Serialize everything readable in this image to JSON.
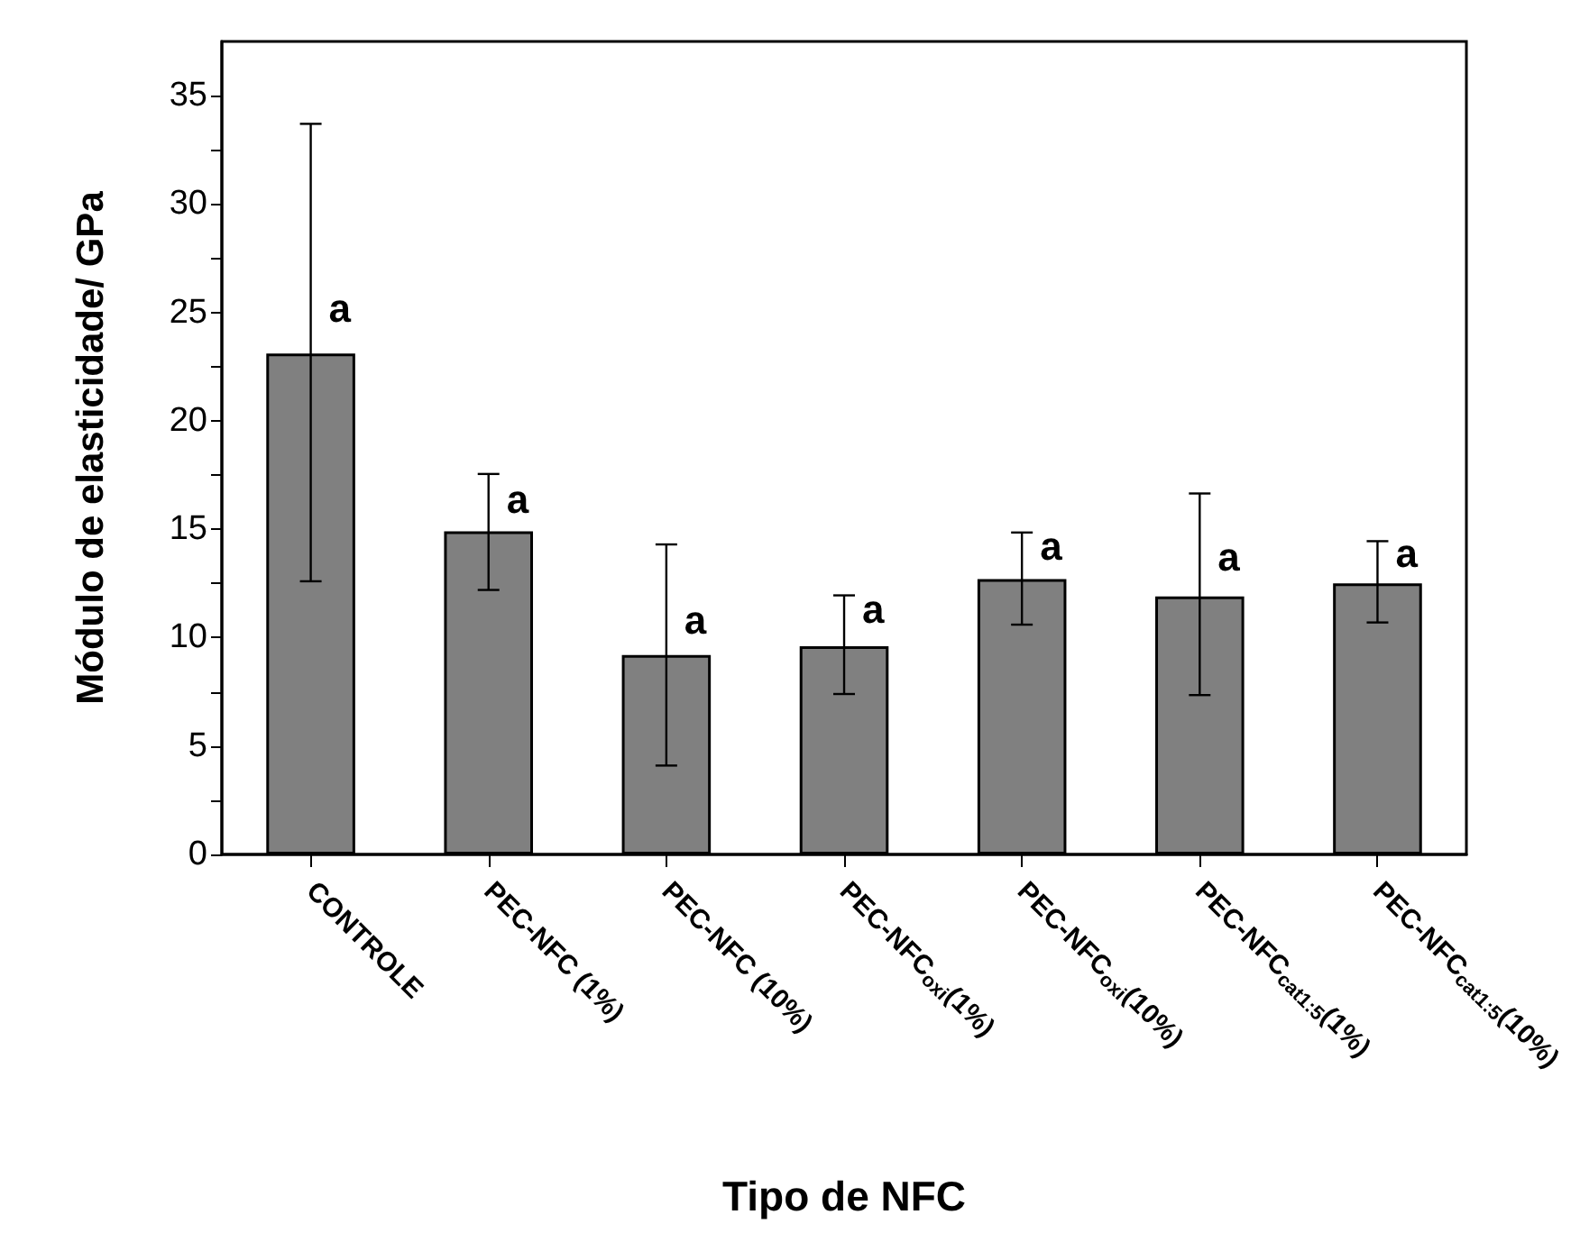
{
  "chart_data": {
    "type": "bar",
    "xlabel": "Tipo de NFC",
    "ylabel": "Módulo de elasticidade/ GPa",
    "categories": [
      "CONTROLE",
      "PEC-NFC (1%)",
      "PEC-NFC (10%)",
      "PEC-NFC$_{oxi}$(1%)",
      "PEC-NFC$_{oxi}$(10%)",
      "PEC-NFC$_{cat1:5}$(1%)",
      "PEC-NFC$_{cat1:5}$(10%)"
    ],
    "values": [
      23.1,
      14.9,
      9.2,
      9.6,
      12.7,
      11.9,
      12.5
    ],
    "errors": [
      [
        12.6,
        33.7
      ],
      [
        12.2,
        17.55
      ],
      [
        4.1,
        14.3
      ],
      [
        7.4,
        11.95
      ],
      [
        10.6,
        14.85
      ],
      [
        7.35,
        16.65
      ],
      [
        10.7,
        14.45
      ]
    ],
    "color": "#808080",
    "ylim": [
      0,
      37.5
    ],
    "yticks": [
      0,
      {
        "value": 2.5,
        "label": null
      },
      5,
      {
        "value": 7.5,
        "label": null
      },
      10,
      {
        "value": 12.5,
        "label": null
      },
      15,
      {
        "value": 17.5,
        "label": null
      },
      20,
      {
        "value": 22.5,
        "label": null
      },
      25,
      {
        "value": 27.5,
        "label": null
      },
      30,
      {
        "value": 32.5,
        "label": null
      },
      35
    ],
    "grid": false,
    "annotations": [
      {
        "text": "a",
        "x": "CONTROLE",
        "y": 25.2
      },
      {
        "text": "a",
        "x": "PEC-NFC (1%)",
        "y": 16.4
      },
      {
        "text": "a",
        "x": "PEC-NFC (10%)",
        "y": 10.8
      },
      {
        "text": "a",
        "x": "PEC-NFC$_{oxi}$(1%)",
        "y": 11.3
      },
      {
        "text": "a",
        "x": "PEC-NFC$_{oxi}$(10%)",
        "y": 14.2
      },
      {
        "text": "a",
        "x": "PEC-NFC$_{cat1:5}$(1%)",
        "y": 13.7
      },
      {
        "text": "a",
        "x": "PEC-NFC$_{cat1:5}$(10%)",
        "y": 13.9
      }
    ]
  }
}
